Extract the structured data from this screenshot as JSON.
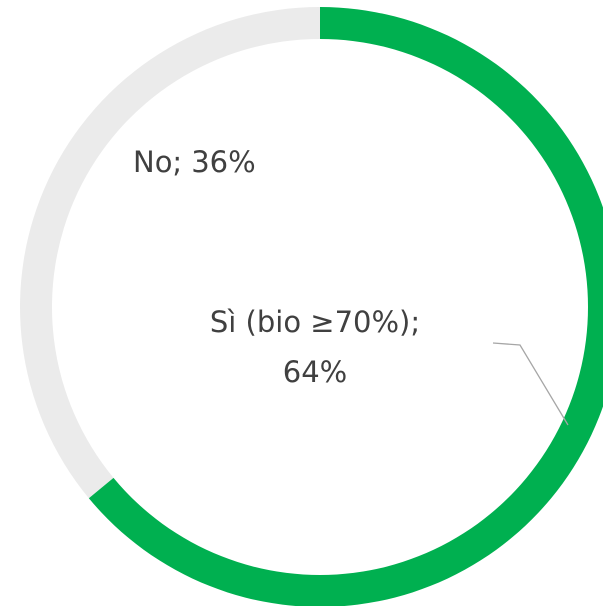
{
  "chart_data": {
    "type": "donut",
    "labels": [
      "Sì (bio ≥70%);",
      "No;"
    ],
    "values": [
      64,
      36
    ],
    "value_labels": [
      "64%",
      "36%"
    ],
    "colors": [
      "#00b050",
      "#ebebeb"
    ]
  }
}
